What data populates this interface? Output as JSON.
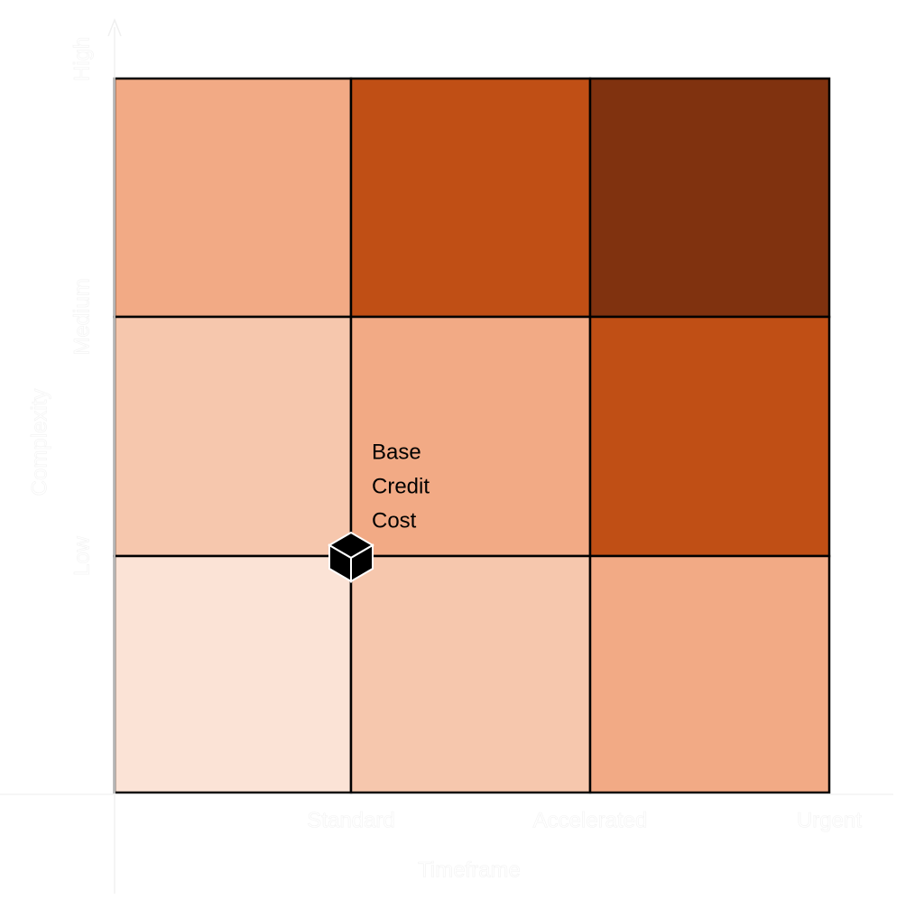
{
  "title": null,
  "x_axis": {
    "label": "Timeframe",
    "ticks": [
      "Standard",
      "Accelerated",
      "Urgent"
    ]
  },
  "y_axis": {
    "label": "Complexity",
    "ticks": [
      "Low",
      "Medium",
      "High"
    ]
  },
  "grid": {
    "rows": [
      [
        "#f2aa85",
        "#c04f15",
        "#80320f"
      ],
      [
        "#f6c7ad",
        "#f2aa85",
        "#c04f15"
      ],
      [
        "#fbe3d6",
        "#f6c7ad",
        "#f2aa85"
      ]
    ]
  },
  "annotation": {
    "lines": [
      "Base",
      "Credit",
      "Cost"
    ]
  }
}
